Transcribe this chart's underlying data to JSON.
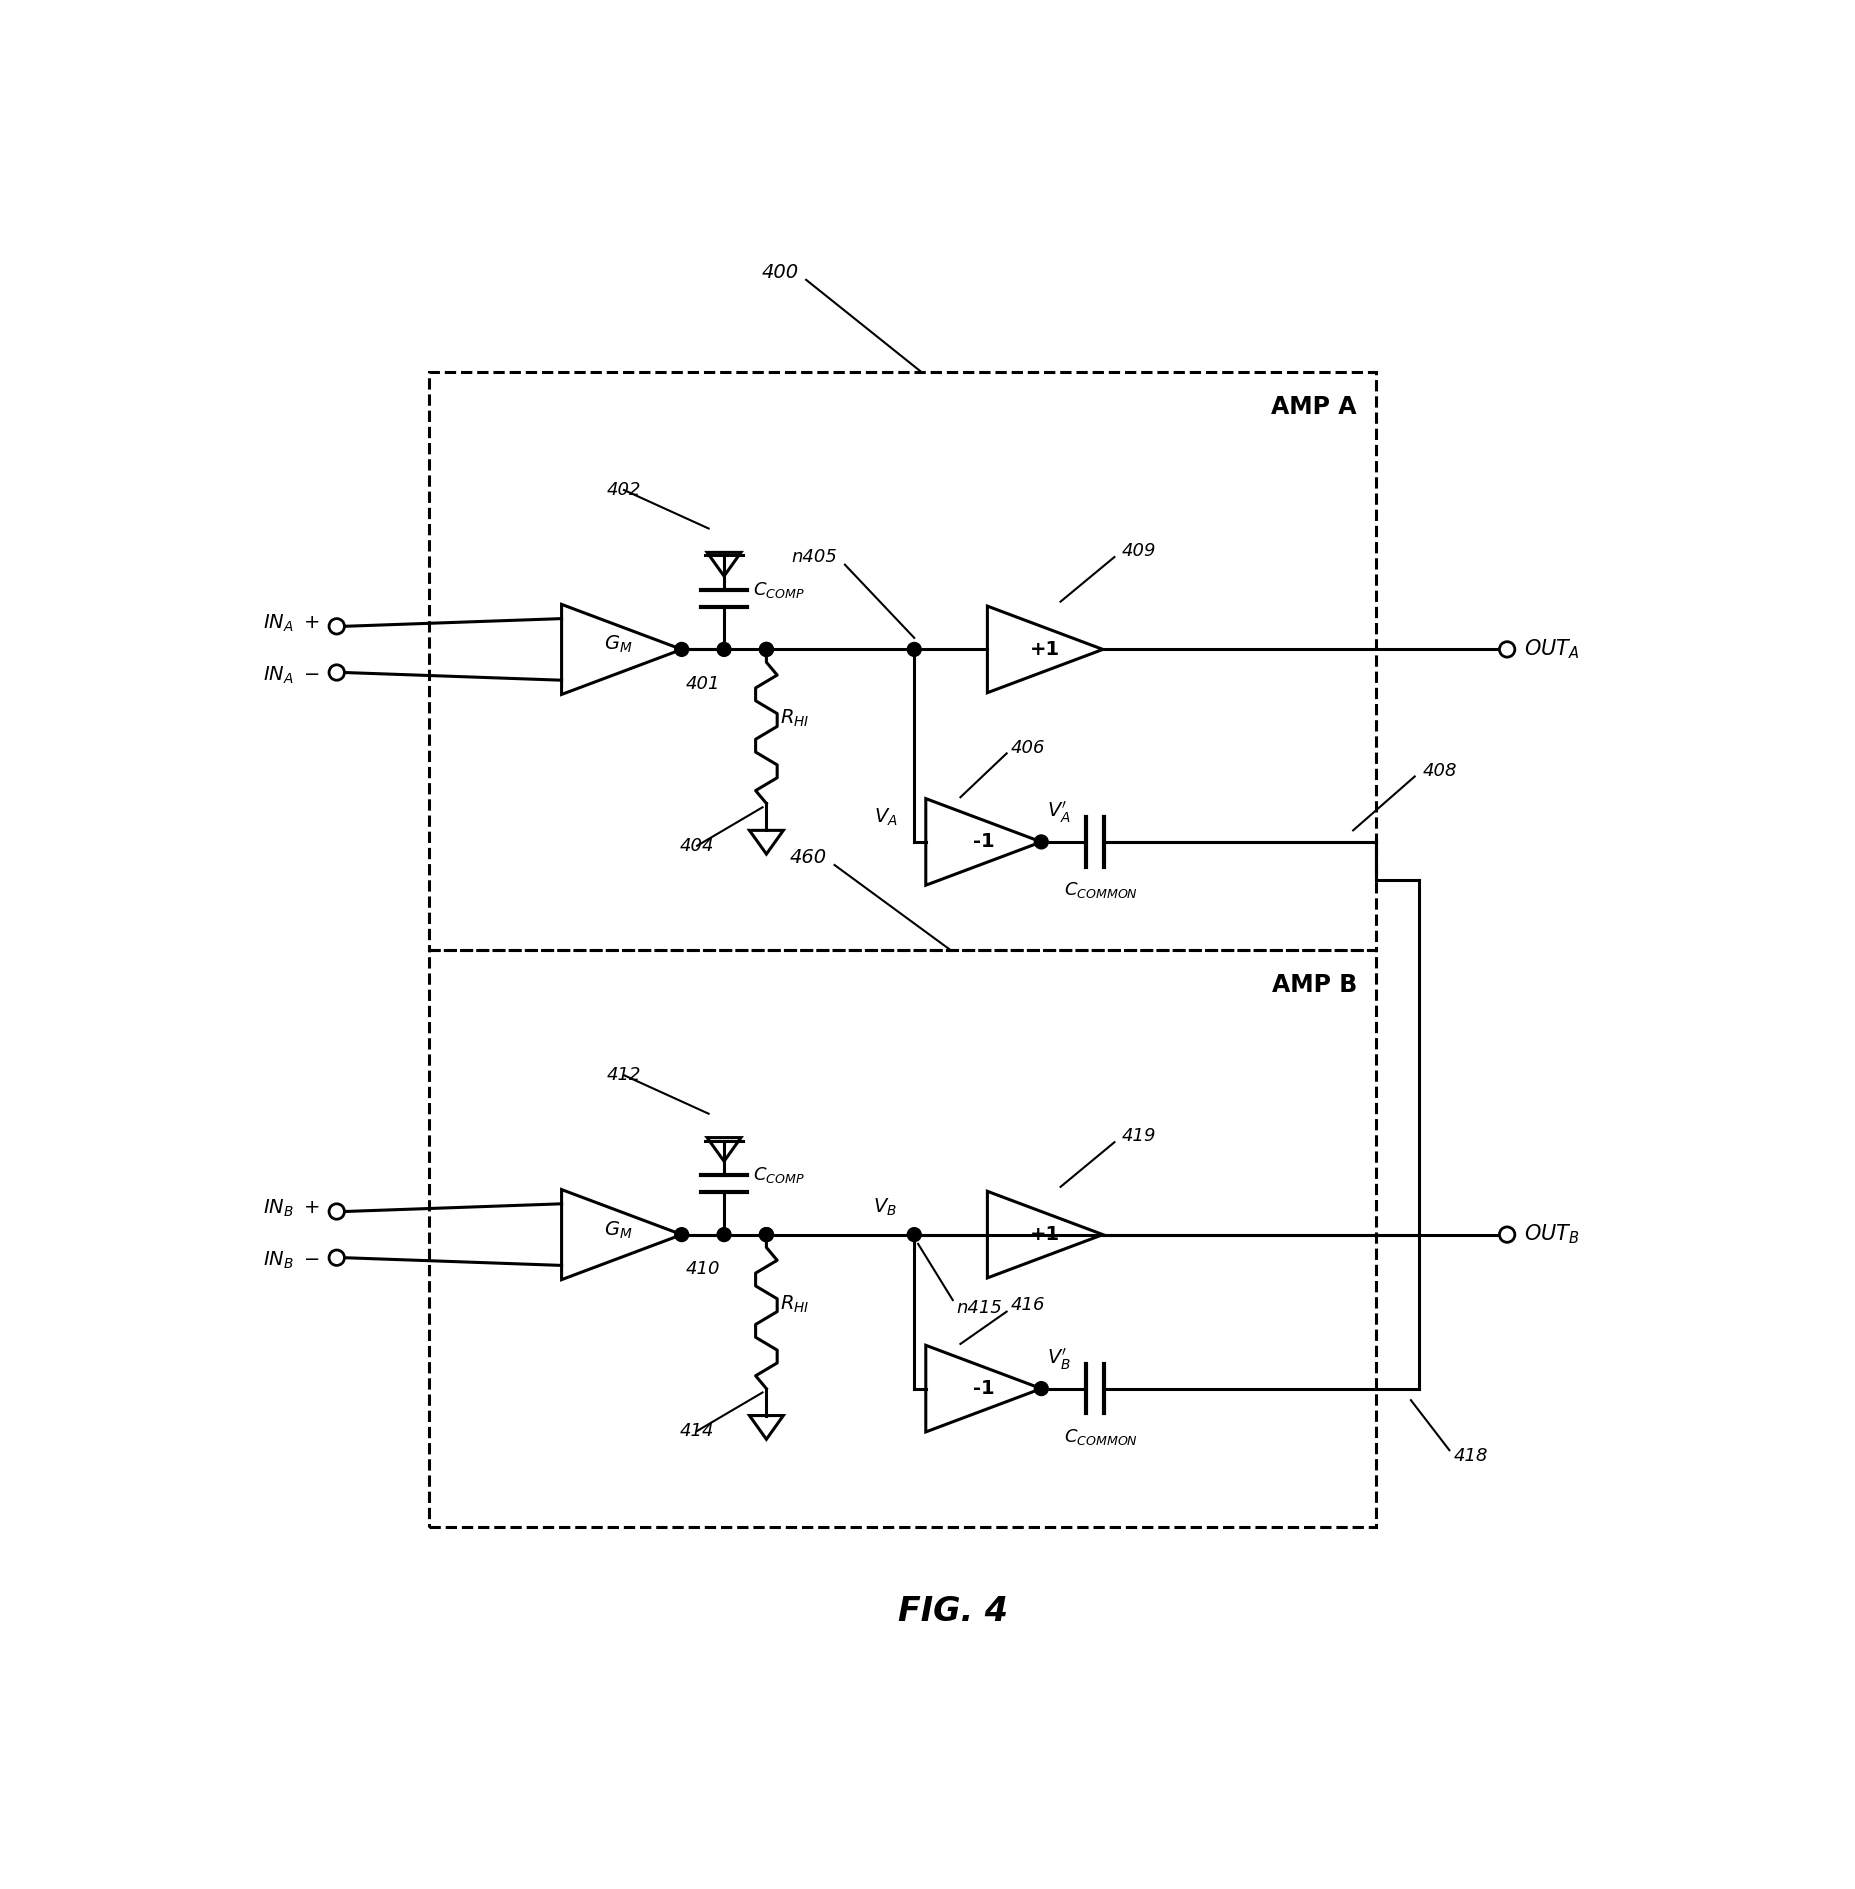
{
  "fig_width": 18.56,
  "fig_height": 18.89,
  "bg": "#ffffff",
  "lw": 2.2,
  "amp_a_label": "AMP A",
  "amp_b_label": "AMP B",
  "fig_label": "FIG. 4",
  "ref_400": "400",
  "ref_460": "460",
  "ref_402": "402",
  "ref_401": "401",
  "ref_404": "404",
  "ref_n405": "n405",
  "ref_409": "409",
  "ref_406": "406",
  "ref_408": "408",
  "ref_412": "412",
  "ref_410": "410",
  "ref_414": "414",
  "ref_n415": "n415",
  "ref_419": "419",
  "ref_416": "416",
  "ref_418": "418"
}
